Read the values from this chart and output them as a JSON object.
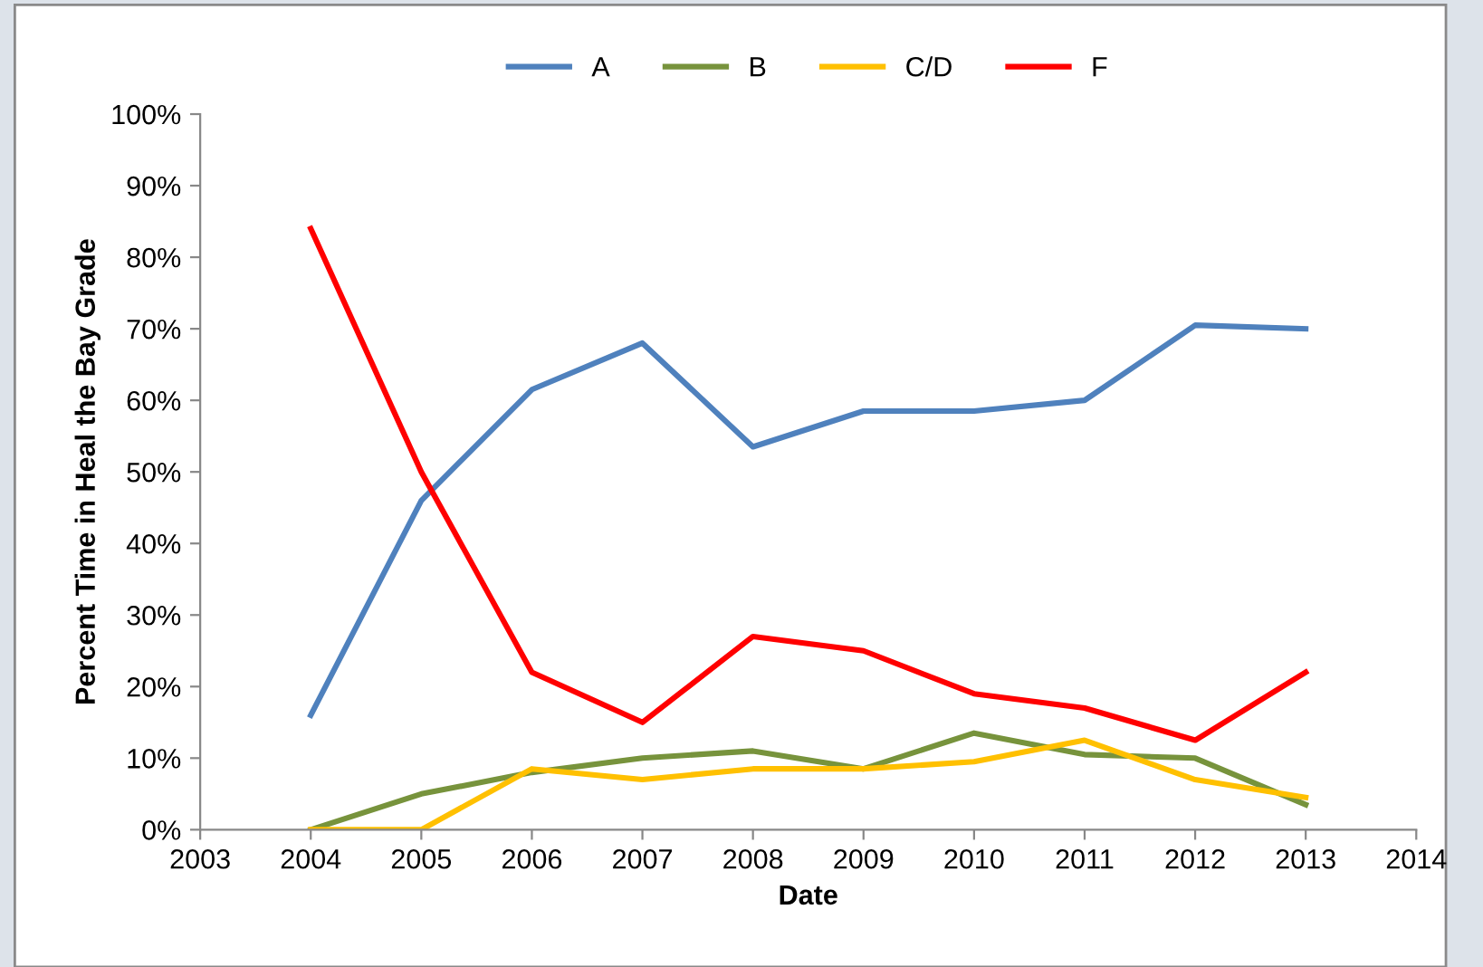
{
  "chart_data": {
    "type": "line",
    "xlabel": "Date",
    "ylabel": "Percent Time in Heal the Bay Grade",
    "x": [
      2004,
      2005,
      2006,
      2007,
      2008,
      2009,
      2010,
      2011,
      2012,
      2013
    ],
    "series": [
      {
        "name": "A",
        "color": "#4f81bd",
        "values": [
          16,
          46,
          61.5,
          68,
          53.5,
          58.5,
          58.5,
          60,
          70.5,
          70
        ]
      },
      {
        "name": "B",
        "color": "#77933c",
        "values": [
          0,
          5,
          8,
          10,
          11,
          8.5,
          13.5,
          10.5,
          10,
          3.5
        ]
      },
      {
        "name": "C/D",
        "color": "#ffc000",
        "values": [
          0,
          0,
          8.5,
          7,
          8.5,
          8.5,
          9.5,
          12.5,
          7,
          4.5
        ]
      },
      {
        "name": "F",
        "color": "#ff0000",
        "values": [
          84,
          50,
          22,
          15,
          27,
          25,
          19,
          17,
          12.5,
          22
        ]
      }
    ],
    "xlim": [
      2003,
      2014
    ],
    "xticks": [
      2003,
      2004,
      2005,
      2006,
      2007,
      2008,
      2009,
      2010,
      2011,
      2012,
      2013,
      2014
    ],
    "ylim": [
      0,
      100
    ],
    "yticks": [
      {
        "value": 0,
        "label": "0%"
      },
      {
        "value": 10,
        "label": "10%"
      },
      {
        "value": 20,
        "label": "20%"
      },
      {
        "value": 30,
        "label": "30%"
      },
      {
        "value": 40,
        "label": "40%"
      },
      {
        "value": 50,
        "label": "50%"
      },
      {
        "value": 60,
        "label": "60%"
      },
      {
        "value": 70,
        "label": "70%"
      },
      {
        "value": 80,
        "label": "80%"
      },
      {
        "value": 90,
        "label": "90%"
      },
      {
        "value": 100,
        "label": "100%"
      }
    ],
    "grid": false,
    "legend": "top",
    "marker": "none",
    "line_style": "solid"
  }
}
